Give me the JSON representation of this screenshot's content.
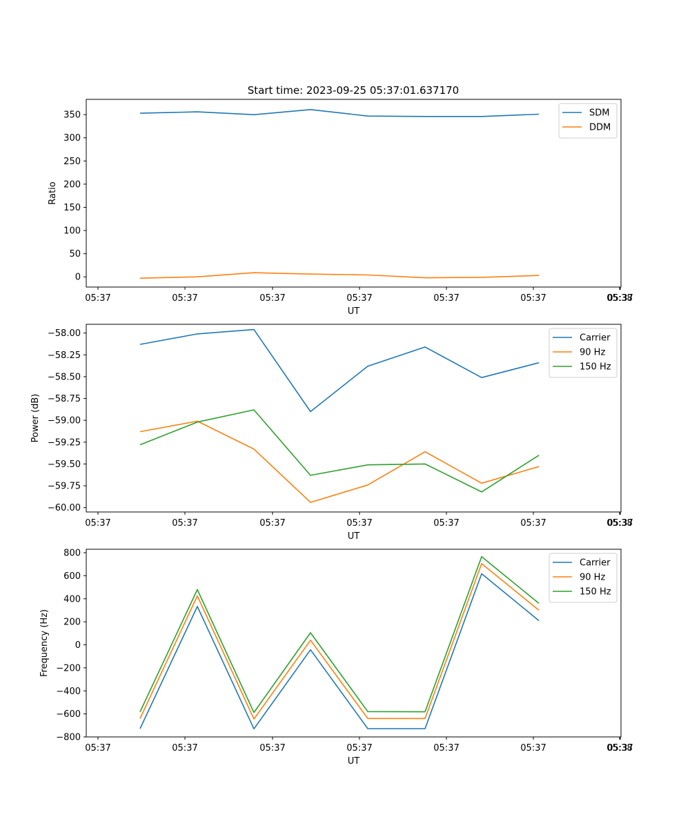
{
  "figure": {
    "title": "Start time: 2023-09-25 05:37:01.637170"
  },
  "chart_data": [
    {
      "type": "line",
      "xlabel": "UT",
      "ylabel": "Ratio",
      "xtick_labels": [
        "05:37",
        "05:37",
        "05:37",
        "05:37",
        "05:37",
        "05:37",
        "05:37",
        "05:38"
      ],
      "yticks": [
        0,
        50,
        100,
        150,
        200,
        250,
        300,
        350
      ],
      "ytick_labels": [
        "0",
        "50",
        "100",
        "150",
        "200",
        "250",
        "300",
        "350"
      ],
      "ylim": [
        -22,
        383
      ],
      "legend_position": "upper-right",
      "series": [
        {
          "name": "SDM",
          "color": "#1f77b4",
          "values": [
            353,
            356,
            350,
            361,
            347,
            346,
            346,
            351
          ]
        },
        {
          "name": "DDM",
          "color": "#ff7f0e",
          "values": [
            -3,
            0,
            9,
            6,
            4,
            -2,
            -1,
            3
          ]
        }
      ]
    },
    {
      "type": "line",
      "xlabel": "UT",
      "ylabel": "Power (dB)",
      "xtick_labels": [
        "05:37",
        "05:37",
        "05:37",
        "05:37",
        "05:37",
        "05:37",
        "05:37",
        "05:38"
      ],
      "yticks": [
        -60.0,
        -59.75,
        -59.5,
        -59.25,
        -59.0,
        -58.75,
        -58.5,
        -58.25,
        -58.0
      ],
      "ytick_labels": [
        "−60.00",
        "−59.75",
        "−59.50",
        "−59.25",
        "−59.00",
        "−58.75",
        "−58.50",
        "−58.25",
        "−58.00"
      ],
      "ylim": [
        -60.05,
        -57.9
      ],
      "legend_position": "upper-right",
      "series": [
        {
          "name": "Carrier",
          "color": "#1f77b4",
          "values": [
            -58.13,
            -58.01,
            -57.96,
            -58.9,
            -58.38,
            -58.16,
            -58.51,
            -58.34
          ]
        },
        {
          "name": "90 Hz",
          "color": "#ff7f0e",
          "values": [
            -59.13,
            -59.01,
            -59.33,
            -59.94,
            -59.74,
            -59.36,
            -59.72,
            -59.53
          ]
        },
        {
          "name": "150 Hz",
          "color": "#2ca02c",
          "values": [
            -59.28,
            -59.02,
            -58.88,
            -59.63,
            -59.51,
            -59.5,
            -59.82,
            -59.4
          ]
        }
      ]
    },
    {
      "type": "line",
      "xlabel": "UT",
      "ylabel": "Frequency (Hz)",
      "xtick_labels": [
        "05:37",
        "05:37",
        "05:37",
        "05:37",
        "05:37",
        "05:37",
        "05:37",
        "05:38"
      ],
      "yticks": [
        -800,
        -600,
        -400,
        -200,
        0,
        200,
        400,
        600,
        800
      ],
      "ytick_labels": [
        "−800",
        "−600",
        "−400",
        "−200",
        "0",
        "200",
        "400",
        "600",
        "800"
      ],
      "ylim": [
        -800,
        830
      ],
      "legend_position": "upper-right",
      "series": [
        {
          "name": "Carrier",
          "color": "#1f77b4",
          "values": [
            -728,
            333,
            -730,
            -43,
            -728,
            -728,
            617,
            210
          ]
        },
        {
          "name": "90 Hz",
          "color": "#ff7f0e",
          "values": [
            -640,
            425,
            -645,
            40,
            -640,
            -640,
            705,
            300
          ]
        },
        {
          "name": "150 Hz",
          "color": "#2ca02c",
          "values": [
            -582,
            480,
            -588,
            105,
            -580,
            -582,
            765,
            360
          ]
        }
      ]
    }
  ]
}
